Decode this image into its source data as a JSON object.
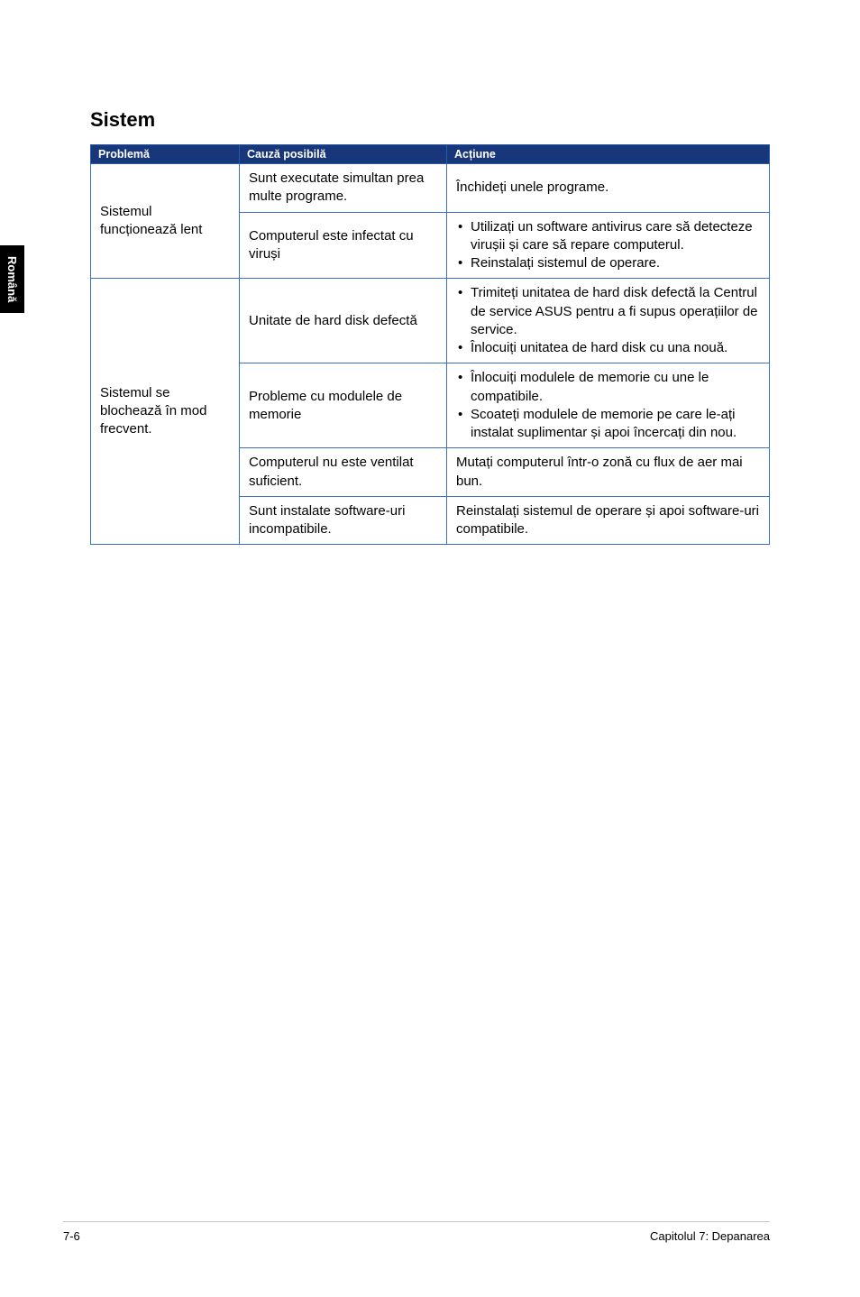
{
  "side_tab": "Română",
  "section_title": "Sistem",
  "headers": {
    "problem": "Problemă",
    "cause": "Cauză posibilă",
    "action": "Acțiune"
  },
  "rows": [
    {
      "problem": "Sistemul funcționează lent",
      "problem_rowspan": 2,
      "cause": "Sunt executate simultan prea multe programe.",
      "action_text": "Închideți unele programe."
    },
    {
      "cause": "Computerul este infectat cu viruși",
      "action_list": [
        "Utilizați un software antivirus care să detecteze virușii și care să repare computerul.",
        "Reinstalați sistemul de operare."
      ]
    },
    {
      "problem": "Sistemul se blochează în mod frecvent.",
      "problem_rowspan": 4,
      "cause": "Unitate de hard disk defectă",
      "action_list": [
        "Trimiteți unitatea de hard disk defectă la Centrul de service ASUS pentru a fi supus operațiilor de service.",
        "Înlocuiți unitatea de hard disk cu una nouă."
      ]
    },
    {
      "cause": "Probleme cu modulele de memorie",
      "action_list": [
        "Înlocuiți modulele de memorie cu une le compatibile.",
        "Scoateți modulele de memorie pe care le-ați instalat suplimentar și apoi încercați din nou."
      ]
    },
    {
      "cause": "Computerul nu este ventilat suficient.",
      "action_text": "Mutați computerul într-o zonă cu flux de aer mai bun."
    },
    {
      "cause": "Sunt instalate software-uri incompatibile.",
      "action_text": "Reinstalați sistemul de operare și apoi software-uri compatibile."
    }
  ],
  "footer": {
    "page": "7-6",
    "chapter": "Capitolul 7: Depanarea"
  }
}
